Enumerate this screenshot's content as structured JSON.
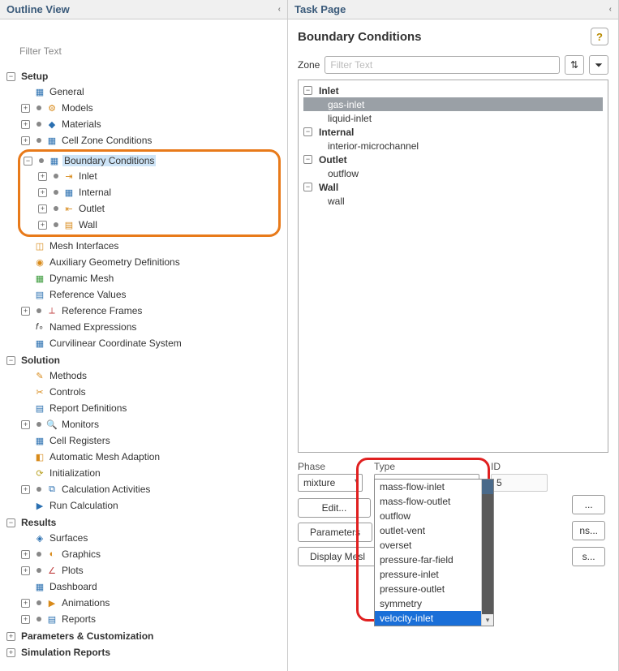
{
  "outline": {
    "title": "Outline View",
    "filter_placeholder": "Filter Text",
    "tree": {
      "setup": {
        "label": "Setup",
        "general": "General",
        "models": "Models",
        "materials": "Materials",
        "cellzone": "Cell Zone Conditions",
        "boundary": {
          "label": "Boundary Conditions",
          "inlet": "Inlet",
          "internal": "Internal",
          "outlet": "Outlet",
          "wall": "Wall"
        },
        "meshif": "Mesh Interfaces",
        "auxgeom": "Auxiliary Geometry Definitions",
        "dynmesh": "Dynamic Mesh",
        "refvals": "Reference Values",
        "refframes": "Reference Frames",
        "namedexpr": "Named Expressions",
        "curvcoord": "Curvilinear Coordinate System"
      },
      "solution": {
        "label": "Solution",
        "methods": "Methods",
        "controls": "Controls",
        "reportdef": "Report Definitions",
        "monitors": "Monitors",
        "cellreg": "Cell Registers",
        "automesh": "Automatic Mesh Adaption",
        "init": "Initialization",
        "calcact": "Calculation Activities",
        "runcalc": "Run Calculation"
      },
      "results": {
        "label": "Results",
        "surfaces": "Surfaces",
        "graphics": "Graphics",
        "plots": "Plots",
        "dashboard": "Dashboard",
        "animations": "Animations",
        "reports": "Reports"
      },
      "params": "Parameters & Customization",
      "simrep": "Simulation Reports"
    }
  },
  "task": {
    "title": "Task Page",
    "heading": "Boundary Conditions",
    "zone_label": "Zone",
    "zone_filter_placeholder": "Filter Text",
    "groups": {
      "inlet": {
        "label": "Inlet",
        "items": {
          "gas": "gas-inlet",
          "liquid": "liquid-inlet"
        }
      },
      "internal": {
        "label": "Internal",
        "items": {
          "micro": "interior-microchannel"
        }
      },
      "outlet": {
        "label": "Outlet",
        "items": {
          "out": "outflow"
        }
      },
      "wall": {
        "label": "Wall",
        "items": {
          "w": "wall"
        }
      }
    },
    "form": {
      "phase_label": "Phase",
      "phase_value": "mixture",
      "type_label": "Type",
      "type_value": "velocity-inlet",
      "id_label": "ID",
      "id_value": "5"
    },
    "buttons": {
      "edit": "Edit...",
      "params": "Parameters",
      "display": "Display Mesl",
      "dots1": "...",
      "dots2": "ns...",
      "dots3": "s..."
    },
    "type_dropdown": [
      "mass-flow-inlet",
      "mass-flow-outlet",
      "outflow",
      "outlet-vent",
      "overset",
      "pressure-far-field",
      "pressure-inlet",
      "pressure-outlet",
      "symmetry",
      "velocity-inlet"
    ],
    "type_dropdown_selected": "velocity-inlet"
  },
  "colors": {
    "orange_highlight": "#e87a1a",
    "red_highlight": "#e02020",
    "selected_row": "#9aa0a6",
    "tree_selected": "#cde4f7",
    "dropdown_hl": "#1a6fd8"
  }
}
